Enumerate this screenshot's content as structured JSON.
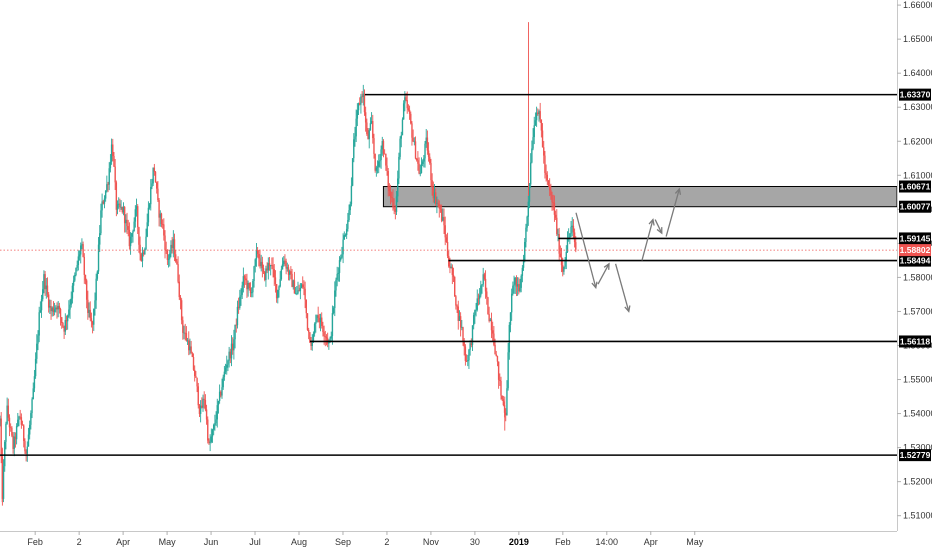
{
  "chart_data": {
    "type": "candlestick",
    "y_axis": {
      "ylim": [
        1.5055,
        1.6615
      ],
      "ticks": [
        "1.51000",
        "1.52000",
        "1.53000",
        "1.54000",
        "1.55000",
        "1.56000",
        "1.57000",
        "1.58000",
        "1.59000",
        "1.60000",
        "1.61000",
        "1.62000",
        "1.63000",
        "1.64000",
        "1.65000",
        "1.66000"
      ]
    },
    "x_axis": {
      "ticks": [
        {
          "label": "Feb",
          "t": 0.8,
          "bold": false
        },
        {
          "label": "2",
          "t": 1.8,
          "bold": false
        },
        {
          "label": "Apr",
          "t": 2.8,
          "bold": false
        },
        {
          "label": "May",
          "t": 3.8,
          "bold": false
        },
        {
          "label": "Jun",
          "t": 4.8,
          "bold": false
        },
        {
          "label": "Jul",
          "t": 5.8,
          "bold": false
        },
        {
          "label": "Aug",
          "t": 6.8,
          "bold": false
        },
        {
          "label": "Sep",
          "t": 7.8,
          "bold": false
        },
        {
          "label": "2",
          "t": 8.8,
          "bold": false
        },
        {
          "label": "Nov",
          "t": 9.8,
          "bold": false
        },
        {
          "label": "30",
          "t": 10.8,
          "bold": false
        },
        {
          "label": "2019",
          "t": 11.8,
          "bold": true
        },
        {
          "label": "Feb",
          "t": 12.8,
          "bold": false
        },
        {
          "label": "14:00",
          "t": 13.8,
          "bold": false
        },
        {
          "label": "Apr",
          "t": 14.8,
          "bold": false
        },
        {
          "label": "May",
          "t": 15.8,
          "bold": false
        }
      ],
      "tlim": [
        0,
        20.4
      ]
    },
    "price_path": [
      [
        0.0,
        1.538
      ],
      [
        0.05,
        1.515
      ],
      [
        0.15,
        1.542
      ],
      [
        0.3,
        1.53
      ],
      [
        0.45,
        1.54
      ],
      [
        0.6,
        1.528
      ],
      [
        0.75,
        1.545
      ],
      [
        0.9,
        1.57
      ],
      [
        1.0,
        1.58
      ],
      [
        1.15,
        1.57
      ],
      [
        1.3,
        1.572
      ],
      [
        1.45,
        1.565
      ],
      [
        1.55,
        1.57
      ],
      [
        1.7,
        1.58
      ],
      [
        1.85,
        1.59
      ],
      [
        2.0,
        1.57
      ],
      [
        2.1,
        1.565
      ],
      [
        2.2,
        1.58
      ],
      [
        2.3,
        1.6
      ],
      [
        2.45,
        1.608
      ],
      [
        2.55,
        1.62
      ],
      [
        2.65,
        1.6
      ],
      [
        2.8,
        1.6
      ],
      [
        2.95,
        1.59
      ],
      [
        3.1,
        1.6
      ],
      [
        3.2,
        1.585
      ],
      [
        3.3,
        1.59
      ],
      [
        3.4,
        1.603
      ],
      [
        3.5,
        1.613
      ],
      [
        3.6,
        1.6
      ],
      [
        3.7,
        1.595
      ],
      [
        3.8,
        1.585
      ],
      [
        3.95,
        1.59
      ],
      [
        4.05,
        1.58
      ],
      [
        4.15,
        1.565
      ],
      [
        4.3,
        1.56
      ],
      [
        4.45,
        1.55
      ],
      [
        4.55,
        1.54
      ],
      [
        4.65,
        1.545
      ],
      [
        4.75,
        1.53
      ],
      [
        4.85,
        1.535
      ],
      [
        5.0,
        1.545
      ],
      [
        5.15,
        1.555
      ],
      [
        5.3,
        1.56
      ],
      [
        5.4,
        1.57
      ],
      [
        5.55,
        1.58
      ],
      [
        5.7,
        1.575
      ],
      [
        5.85,
        1.588
      ],
      [
        6.0,
        1.58
      ],
      [
        6.15,
        1.585
      ],
      [
        6.3,
        1.575
      ],
      [
        6.45,
        1.586
      ],
      [
        6.6,
        1.58
      ],
      [
        6.75,
        1.575
      ],
      [
        6.9,
        1.578
      ],
      [
        7.0,
        1.565
      ],
      [
        7.1,
        1.56
      ],
      [
        7.2,
        1.57
      ],
      [
        7.35,
        1.565
      ],
      [
        7.5,
        1.56
      ],
      [
        7.65,
        1.58
      ],
      [
        7.8,
        1.59
      ],
      [
        7.95,
        1.6
      ],
      [
        8.05,
        1.62
      ],
      [
        8.15,
        1.63
      ],
      [
        8.25,
        1.635
      ],
      [
        8.35,
        1.62
      ],
      [
        8.45,
        1.625
      ],
      [
        8.55,
        1.61
      ],
      [
        8.7,
        1.62
      ],
      [
        8.85,
        1.605
      ],
      [
        9.0,
        1.6
      ],
      [
        9.1,
        1.62
      ],
      [
        9.2,
        1.632
      ],
      [
        9.3,
        1.628
      ],
      [
        9.4,
        1.62
      ],
      [
        9.55,
        1.61
      ],
      [
        9.7,
        1.62
      ],
      [
        9.85,
        1.605
      ],
      [
        10.0,
        1.6
      ],
      [
        10.1,
        1.595
      ],
      [
        10.2,
        1.585
      ],
      [
        10.3,
        1.58
      ],
      [
        10.4,
        1.57
      ],
      [
        10.5,
        1.565
      ],
      [
        10.6,
        1.555
      ],
      [
        10.7,
        1.56
      ],
      [
        10.8,
        1.57
      ],
      [
        10.9,
        1.575
      ],
      [
        11.0,
        1.58
      ],
      [
        11.1,
        1.57
      ],
      [
        11.2,
        1.565
      ],
      [
        11.3,
        1.555
      ],
      [
        11.4,
        1.545
      ],
      [
        11.5,
        1.54
      ],
      [
        11.6,
        1.57
      ],
      [
        11.7,
        1.58
      ],
      [
        11.8,
        1.575
      ],
      [
        11.9,
        1.585
      ],
      [
        12.0,
        1.6
      ],
      [
        12.1,
        1.62
      ],
      [
        12.2,
        1.63
      ],
      [
        12.3,
        1.625
      ],
      [
        12.4,
        1.61
      ],
      [
        12.5,
        1.605
      ],
      [
        12.6,
        1.6
      ],
      [
        12.7,
        1.59
      ],
      [
        12.8,
        1.582
      ],
      [
        12.9,
        1.59
      ],
      [
        13.0,
        1.595
      ],
      [
        13.1,
        1.588
      ]
    ],
    "annotations": {
      "levels": [
        {
          "value": 1.6337,
          "x_start": 8.3,
          "x_end": 20.4,
          "label": "1.63370"
        },
        {
          "value": 1.59145,
          "x_start": 12.7,
          "x_end": 20.4,
          "label": "1.59145"
        },
        {
          "value": 1.58494,
          "x_start": 10.2,
          "x_end": 20.4,
          "label": "1.58494"
        },
        {
          "value": 1.56118,
          "x_start": 7.05,
          "x_end": 20.4,
          "label": "1.56118"
        },
        {
          "value": 1.52779,
          "x_start": 0.0,
          "x_end": 20.4,
          "label": "1.52779"
        }
      ],
      "zone": {
        "top": 1.60671,
        "bottom": 1.60077,
        "x_start": 8.72,
        "x_end": 20.4,
        "labels": [
          "1.60671",
          "1.60077"
        ]
      },
      "current_price": {
        "value": 1.58802,
        "label": "1.58802",
        "color": "#ef5350"
      },
      "arrows": [
        {
          "from": [
            13.1,
            1.599
          ],
          "to": [
            13.55,
            1.577
          ]
        },
        {
          "from": [
            13.6,
            1.578
          ],
          "to": [
            13.85,
            1.584
          ]
        },
        {
          "from": [
            14.0,
            1.584
          ],
          "to": [
            14.3,
            1.57
          ]
        },
        {
          "from": [
            14.6,
            1.585
          ],
          "to": [
            14.85,
            1.597
          ]
        },
        {
          "from": [
            14.9,
            1.597
          ],
          "to": [
            15.05,
            1.593
          ]
        },
        {
          "from": [
            15.15,
            1.592
          ],
          "to": [
            15.45,
            1.606
          ]
        }
      ]
    },
    "colors": {
      "up": "#26a69a",
      "down": "#ef5350",
      "level_line": "#000000",
      "zone_fill": "#a6a6a6",
      "arrow": "#7a7a7a",
      "tag_bg": "#000000"
    }
  }
}
